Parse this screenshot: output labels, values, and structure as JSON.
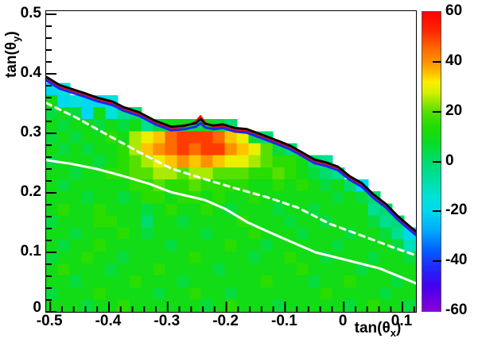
{
  "figure": {
    "background": "#ffffff",
    "frame_color": "#000000"
  },
  "axes": {
    "x": {
      "title_main": "tan(θ",
      "title_sub": "x",
      "title_post": ")",
      "min": -0.507,
      "max": 0.123,
      "minor_step": 0.02,
      "ticks": [
        {
          "v": -0.5,
          "label": "-0.5"
        },
        {
          "v": -0.4,
          "label": "-0.4"
        },
        {
          "v": -0.3,
          "label": "-0.3"
        },
        {
          "v": -0.2,
          "label": "-0.2"
        },
        {
          "v": -0.1,
          "label": "-0.1"
        },
        {
          "v": 0,
          "label": "0"
        },
        {
          "v": 0.1,
          "label": "0.1"
        }
      ]
    },
    "y": {
      "title_main": "tan(θ",
      "title_sub": "y",
      "title_post": ")",
      "min": 0,
      "max": 0.5053,
      "minor_step": 0.02,
      "ticks": [
        {
          "v": 0.5,
          "label": "0.5"
        },
        {
          "v": 0.4,
          "label": "0.4"
        },
        {
          "v": 0.3,
          "label": "0.3"
        },
        {
          "v": 0.2,
          "label": "0.2"
        },
        {
          "v": 0.1,
          "label": "0.1"
        },
        {
          "v": 0,
          "label": "0"
        }
      ]
    }
  },
  "colorbar": {
    "min": -60,
    "max": 60,
    "ticks": [
      {
        "v": 60,
        "label": "60"
      },
      {
        "v": 40,
        "label": "40"
      },
      {
        "v": 20,
        "label": "20"
      },
      {
        "v": 0,
        "label": "0"
      },
      {
        "v": -20,
        "label": "-20"
      },
      {
        "v": -40,
        "label": "-40"
      },
      {
        "v": -60,
        "label": "-60"
      }
    ]
  },
  "chart_data": {
    "type": "heatmap",
    "x_range": [
      -0.507,
      0.123
    ],
    "y_range": [
      0,
      0.5053
    ],
    "z_range": [
      -60,
      60
    ],
    "grid_cols": 31,
    "grid_rows": 25,
    "value_encoding": {
      "min": -60,
      "step": 5,
      "base_char": "A",
      "empty": "."
    },
    "grid": [
      "...............................",
      "...............................",
      "...............................",
      "...............................",
      "...............................",
      "...............................",
      "IJ.............................",
      "OIJIIJ.........................",
      "NONIOJLM.......................",
      "ONOONONOLNOONONM...............",
      "NONOOPORSTVWWWVTSNM............",
      "ONONOOPRTUVWVWWUTSQNM..........",
      "NOOONOPQRSTUTUTSSRQPPOML.......",
      "OONOOPPQQRRQRRQQQPPQPONML......",
      "ONOOOOOPPQPPQPPPPOOPOPONOMI....",
      "OOONOONOPPOPPOPOOPOOOOOONONM...",
      "OPOOPOOONOPOOPONOOONOONOOOOLM..",
      "NOOOPPOOMOONOOOOPOOONOONOOONLM.",
      "OONOOOPONOOOONOOOPOOONOOONOONLI",
      "ONOOPOOOOONOOOOPOONOOOOONOOOONK",
      "NOOPOONOOOOOPOOOONOOPOONOOONOON",
      "OPOOONOOOPOOOONOOOOOOPOOOONOOOO",
      "OONOOOOPOOONOOOOOOPOOONOOPOOONO",
      "NOOOPOOOONOOPOONOOOOOOOPOOOONOO",
      "OOONOOPOOOOOONOPOOONOOOOONOPOON"
    ],
    "palette": [
      [
        -60,
        "#8800D8"
      ],
      [
        -50,
        "#4400EE"
      ],
      [
        -42,
        "#1C2CFF"
      ],
      [
        -35,
        "#0064FF"
      ],
      [
        -28,
        "#00A8FF"
      ],
      [
        -20,
        "#00D8F0"
      ],
      [
        -14,
        "#00E2D8"
      ],
      [
        -8,
        "#00DFA8"
      ],
      [
        0,
        "#00DC6E"
      ],
      [
        8,
        "#0ADC20"
      ],
      [
        14,
        "#20DC00"
      ],
      [
        20,
        "#55E000"
      ],
      [
        24,
        "#9BE800"
      ],
      [
        28,
        "#D8F000"
      ],
      [
        32,
        "#FFEE00"
      ],
      [
        35,
        "#FFC400"
      ],
      [
        40,
        "#FF9100"
      ],
      [
        45,
        "#FF6A00"
      ],
      [
        52,
        "#FF2A00"
      ],
      [
        60,
        "#FF0000"
      ]
    ],
    "contours": [
      {
        "name": "acceptance-boundary-black",
        "color": "#000000",
        "width": 2.8,
        "style": "solid",
        "points": [
          [
            -0.507,
            0.395
          ],
          [
            -0.484,
            0.381
          ],
          [
            -0.443,
            0.368
          ],
          [
            -0.42,
            0.36
          ],
          [
            -0.393,
            0.353
          ],
          [
            -0.375,
            0.344
          ],
          [
            -0.348,
            0.335
          ],
          [
            -0.321,
            0.321
          ],
          [
            -0.294,
            0.311
          ],
          [
            -0.271,
            0.313
          ],
          [
            -0.252,
            0.317
          ],
          [
            -0.244,
            0.324
          ],
          [
            -0.236,
            0.316
          ],
          [
            -0.222,
            0.313
          ],
          [
            -0.206,
            0.315
          ],
          [
            -0.186,
            0.309
          ],
          [
            -0.165,
            0.307
          ],
          [
            -0.138,
            0.297
          ],
          [
            -0.111,
            0.287
          ],
          [
            -0.091,
            0.279
          ],
          [
            -0.071,
            0.268
          ],
          [
            -0.05,
            0.256
          ],
          [
            -0.03,
            0.251
          ],
          [
            -0.01,
            0.244
          ],
          [
            0.01,
            0.228
          ],
          [
            0.031,
            0.216
          ],
          [
            0.051,
            0.197
          ],
          [
            0.072,
            0.181
          ],
          [
            0.092,
            0.161
          ],
          [
            0.112,
            0.144
          ],
          [
            0.123,
            0.135
          ]
        ]
      },
      {
        "name": "acceptance-boundary-red",
        "color": "#EE1100",
        "width": 2.2,
        "style": "solid",
        "points": [
          [
            -0.507,
            0.392
          ],
          [
            -0.484,
            0.378
          ],
          [
            -0.443,
            0.365
          ],
          [
            -0.42,
            0.357
          ],
          [
            -0.393,
            0.35
          ],
          [
            -0.375,
            0.341
          ],
          [
            -0.348,
            0.332
          ],
          [
            -0.321,
            0.318
          ],
          [
            -0.294,
            0.308
          ],
          [
            -0.271,
            0.311
          ],
          [
            -0.252,
            0.32
          ],
          [
            -0.244,
            0.329
          ],
          [
            -0.236,
            0.318
          ],
          [
            -0.222,
            0.31
          ],
          [
            -0.206,
            0.312
          ],
          [
            -0.186,
            0.306
          ],
          [
            -0.165,
            0.304
          ],
          [
            -0.138,
            0.294
          ],
          [
            -0.111,
            0.284
          ],
          [
            -0.091,
            0.276
          ],
          [
            -0.071,
            0.265
          ],
          [
            -0.05,
            0.253
          ],
          [
            -0.03,
            0.248
          ],
          [
            -0.01,
            0.241
          ],
          [
            0.01,
            0.225
          ],
          [
            0.031,
            0.213
          ],
          [
            0.051,
            0.194
          ],
          [
            0.072,
            0.178
          ],
          [
            0.092,
            0.158
          ],
          [
            0.112,
            0.141
          ],
          [
            0.123,
            0.132
          ]
        ]
      },
      {
        "name": "acceptance-boundary-blue",
        "color": "#2222EE",
        "width": 3,
        "style": "solid",
        "points": [
          [
            -0.507,
            0.389
          ],
          [
            -0.484,
            0.375
          ],
          [
            -0.443,
            0.362
          ],
          [
            -0.42,
            0.354
          ],
          [
            -0.393,
            0.347
          ],
          [
            -0.375,
            0.338
          ],
          [
            -0.348,
            0.329
          ],
          [
            -0.321,
            0.315
          ],
          [
            -0.294,
            0.305
          ],
          [
            -0.271,
            0.307
          ],
          [
            -0.252,
            0.311
          ],
          [
            -0.244,
            0.317
          ],
          [
            -0.236,
            0.31
          ],
          [
            -0.222,
            0.307
          ],
          [
            -0.206,
            0.309
          ],
          [
            -0.186,
            0.303
          ],
          [
            -0.165,
            0.301
          ],
          [
            -0.138,
            0.291
          ],
          [
            -0.111,
            0.281
          ],
          [
            -0.091,
            0.273
          ],
          [
            -0.071,
            0.262
          ],
          [
            -0.05,
            0.25
          ],
          [
            -0.03,
            0.245
          ],
          [
            -0.01,
            0.238
          ],
          [
            0.01,
            0.222
          ],
          [
            0.031,
            0.21
          ],
          [
            0.051,
            0.191
          ],
          [
            0.072,
            0.175
          ],
          [
            0.092,
            0.155
          ],
          [
            0.112,
            0.138
          ],
          [
            0.123,
            0.129
          ]
        ]
      },
      {
        "name": "contour-white-dashed",
        "color": "#FFFFFF",
        "width": 3,
        "style": "dashed",
        "points": [
          [
            -0.507,
            0.351
          ],
          [
            -0.457,
            0.327
          ],
          [
            -0.402,
            0.297
          ],
          [
            -0.348,
            0.268
          ],
          [
            -0.294,
            0.241
          ],
          [
            -0.24,
            0.224
          ],
          [
            -0.186,
            0.208
          ],
          [
            -0.132,
            0.193
          ],
          [
            -0.078,
            0.175
          ],
          [
            -0.024,
            0.148
          ],
          [
            0.031,
            0.128
          ],
          [
            0.085,
            0.108
          ],
          [
            0.123,
            0.095
          ]
        ]
      },
      {
        "name": "contour-white-solid",
        "color": "#FFFFFF",
        "width": 3,
        "style": "solid",
        "points": [
          [
            -0.507,
            0.255
          ],
          [
            -0.466,
            0.249
          ],
          [
            -0.42,
            0.24
          ],
          [
            -0.375,
            0.228
          ],
          [
            -0.331,
            0.215
          ],
          [
            -0.294,
            0.201
          ],
          [
            -0.237,
            0.188
          ],
          [
            -0.202,
            0.173
          ],
          [
            -0.165,
            0.151
          ],
          [
            -0.125,
            0.133
          ],
          [
            -0.088,
            0.117
          ],
          [
            -0.048,
            0.1
          ],
          [
            0.001,
            0.088
          ],
          [
            0.061,
            0.073
          ],
          [
            0.123,
            0.048
          ]
        ]
      }
    ]
  }
}
